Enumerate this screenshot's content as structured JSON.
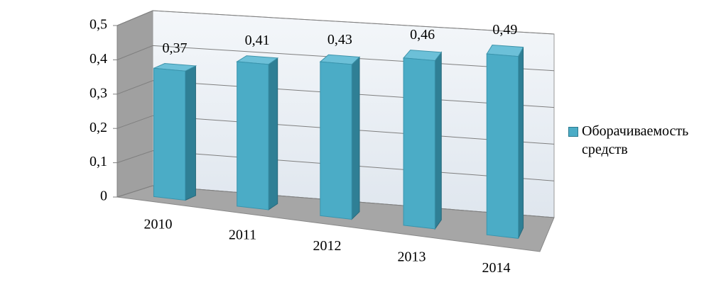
{
  "chart_data": {
    "type": "bar3d",
    "categories": [
      "2010",
      "2011",
      "2012",
      "2013",
      "2014"
    ],
    "series": [
      {
        "name": "Оборачиваемость средств",
        "color": "#4bacc6",
        "values": [
          0.37,
          0.41,
          0.43,
          0.46,
          0.49
        ],
        "value_labels": [
          "0,37",
          "0,41",
          "0,43",
          "0,46",
          "0,49"
        ]
      }
    ],
    "ylim": [
      0,
      0.5
    ],
    "yticks": [
      {
        "value": 0,
        "label": "0"
      },
      {
        "value": 0.1,
        "label": "0,1"
      },
      {
        "value": 0.2,
        "label": "0,2"
      },
      {
        "value": 0.3,
        "label": "0,3"
      },
      {
        "value": 0.4,
        "label": "0,4"
      },
      {
        "value": 0.5,
        "label": "0,5"
      }
    ],
    "grid": true,
    "legend": "right"
  }
}
